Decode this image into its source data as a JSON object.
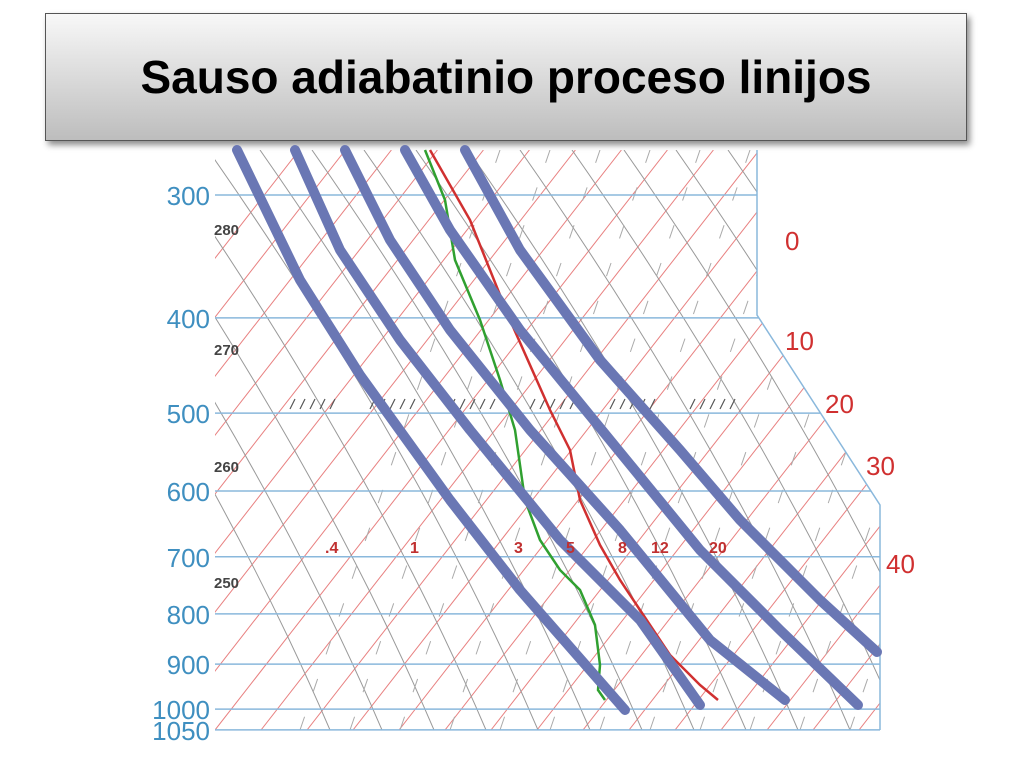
{
  "header": {
    "title": "Sauso adiabatinio proceso linijos"
  },
  "diagram": {
    "pressure_labels": [
      300,
      400,
      500,
      600,
      700,
      800,
      900,
      1000,
      1050
    ],
    "isotherm_labels": [
      "0",
      "10",
      "20",
      "30",
      "40"
    ],
    "theta_labels": [
      "280",
      "270",
      "260",
      "250"
    ],
    "mixing_ratio_labels": [
      ".4",
      "1",
      "3",
      "5",
      "8",
      "12",
      "20"
    ]
  }
}
